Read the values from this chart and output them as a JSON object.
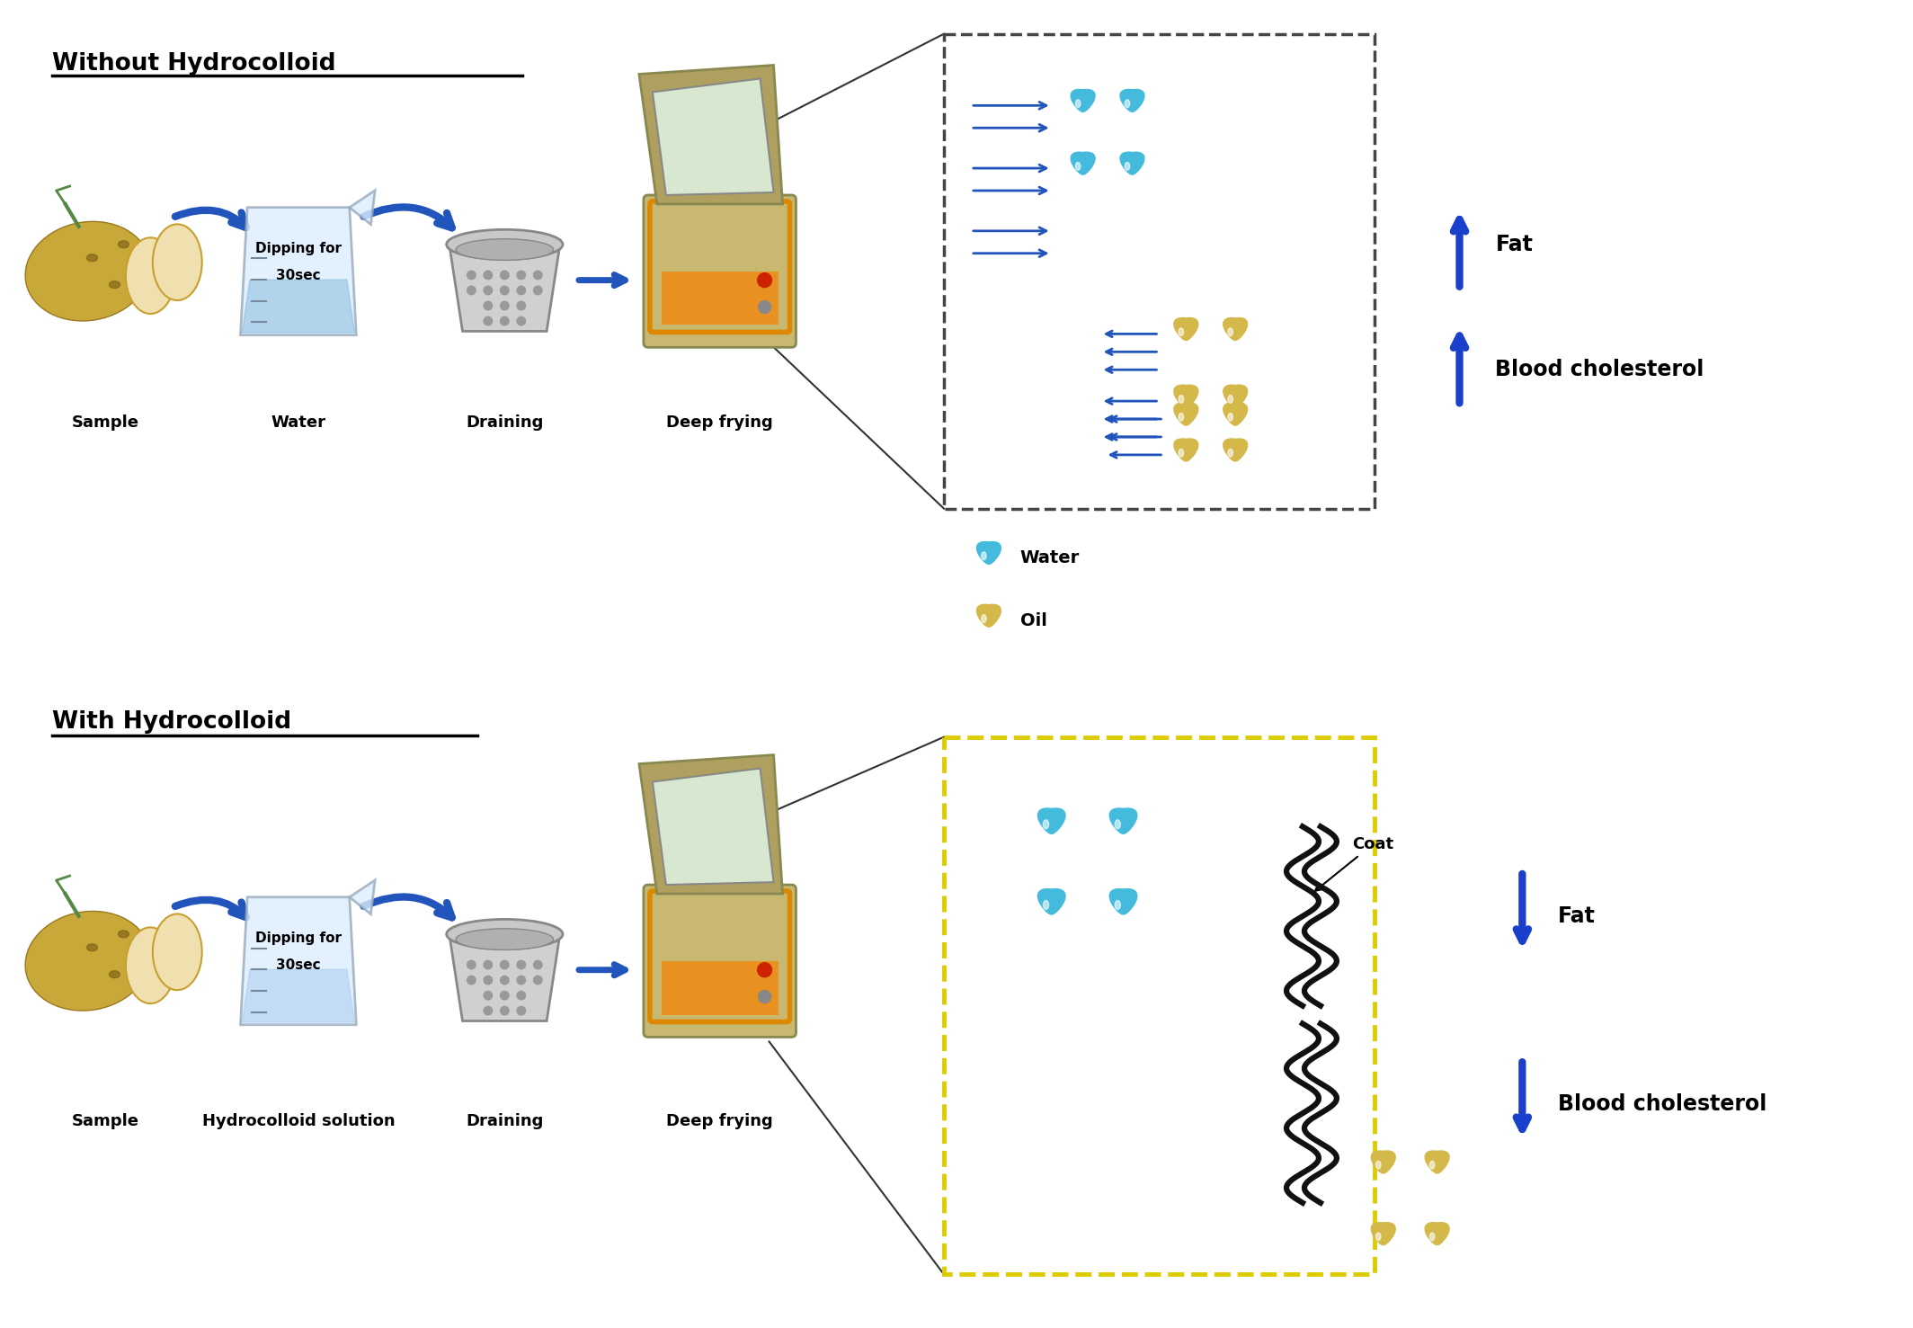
{
  "title_top": "Without Hydrocolloid",
  "title_bottom": "With Hydrocolloid",
  "labels_top": [
    "Sample",
    "Water",
    "Draining",
    "Deep frying"
  ],
  "labels_bottom": [
    "Sample",
    "Hydrocolloid solution",
    "Draining",
    "Deep frying"
  ],
  "water_label": "Water",
  "oil_label": "Oil",
  "fat_label": "Fat",
  "blood_label": "Blood cholesterol",
  "coat_label": "Coat",
  "bg_color": "#ffffff",
  "title_color": "#000000",
  "arrow_color": "#2255bb",
  "up_arrow_color": "#1a3fcc",
  "down_arrow_color": "#1a3fcc",
  "water_drop_color": "#44bbdd",
  "oil_drop_color": "#d4b84a",
  "box_color_top": "#333333",
  "box_color_bottom": "#ddcc00",
  "label_fontsize": 13,
  "title_fontsize": 19,
  "beaker_text": "Dipping for\n30sec"
}
